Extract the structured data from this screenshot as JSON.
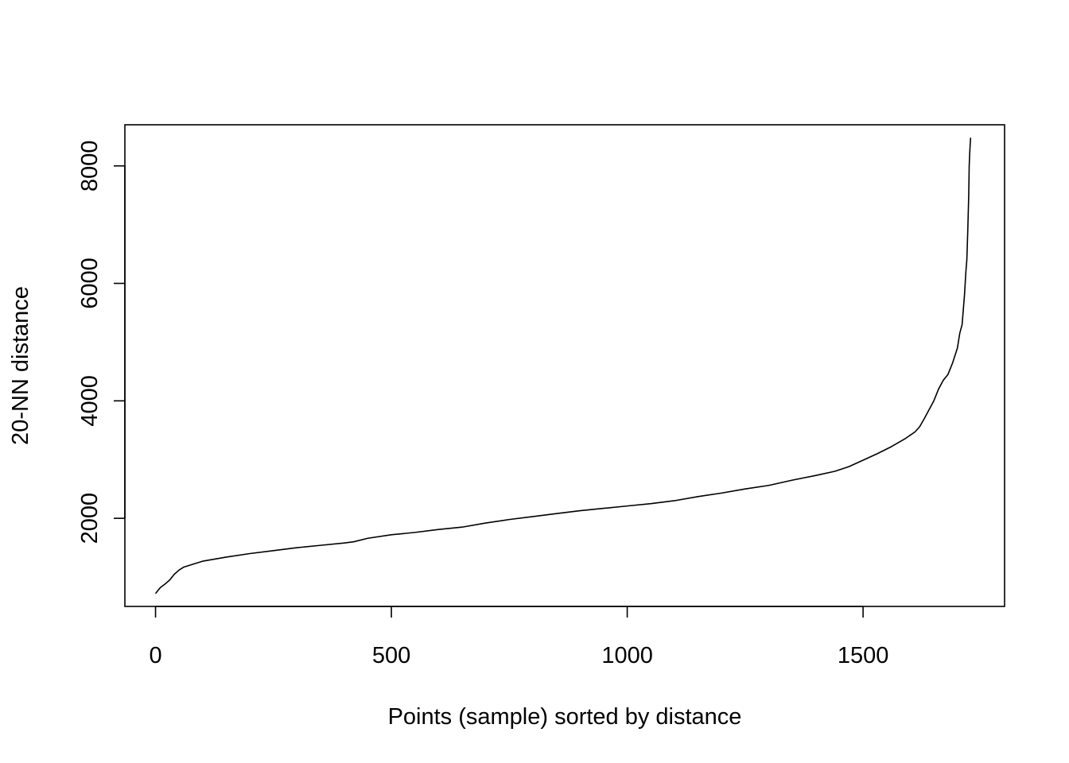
{
  "chart_data": {
    "type": "line",
    "title": "",
    "xlabel": "Points (sample) sorted by distance",
    "ylabel": "20-NN distance",
    "xlim": [
      -65,
      1800
    ],
    "ylim": [
      500,
      8700
    ],
    "x_ticks": [
      0,
      500,
      1000,
      1500
    ],
    "x_tick_labels": [
      "0",
      "500",
      "1000",
      "1500"
    ],
    "y_ticks": [
      2000,
      4000,
      6000,
      8000
    ],
    "y_tick_labels": [
      "2000",
      "4000",
      "6000",
      "8000"
    ],
    "grid": false,
    "legend": "none",
    "line_color": "#000000",
    "series": [
      {
        "x": [
          0,
          10,
          20,
          30,
          40,
          50,
          60,
          80,
          100,
          150,
          200,
          250,
          300,
          350,
          400,
          420,
          450,
          500,
          550,
          600,
          650,
          700,
          750,
          800,
          850,
          900,
          950,
          1000,
          1050,
          1100,
          1150,
          1200,
          1250,
          1300,
          1350,
          1400,
          1440,
          1470,
          1500,
          1530,
          1560,
          1590,
          1610,
          1620,
          1630,
          1640,
          1650,
          1660,
          1670,
          1680,
          1690,
          1700,
          1705,
          1710,
          1712,
          1715,
          1718,
          1720,
          1722,
          1724,
          1725,
          1726,
          1727,
          1728
        ],
        "y": [
          720,
          820,
          880,
          950,
          1050,
          1120,
          1170,
          1220,
          1270,
          1340,
          1400,
          1450,
          1500,
          1540,
          1580,
          1600,
          1660,
          1720,
          1760,
          1810,
          1850,
          1920,
          1980,
          2030,
          2080,
          2130,
          2170,
          2210,
          2250,
          2300,
          2370,
          2430,
          2500,
          2560,
          2650,
          2730,
          2800,
          2880,
          2990,
          3100,
          3220,
          3360,
          3470,
          3560,
          3700,
          3850,
          4000,
          4200,
          4350,
          4450,
          4650,
          4900,
          5150,
          5300,
          5500,
          5800,
          6200,
          6400,
          6900,
          7500,
          8000,
          8200,
          8350,
          8480
        ]
      }
    ]
  }
}
